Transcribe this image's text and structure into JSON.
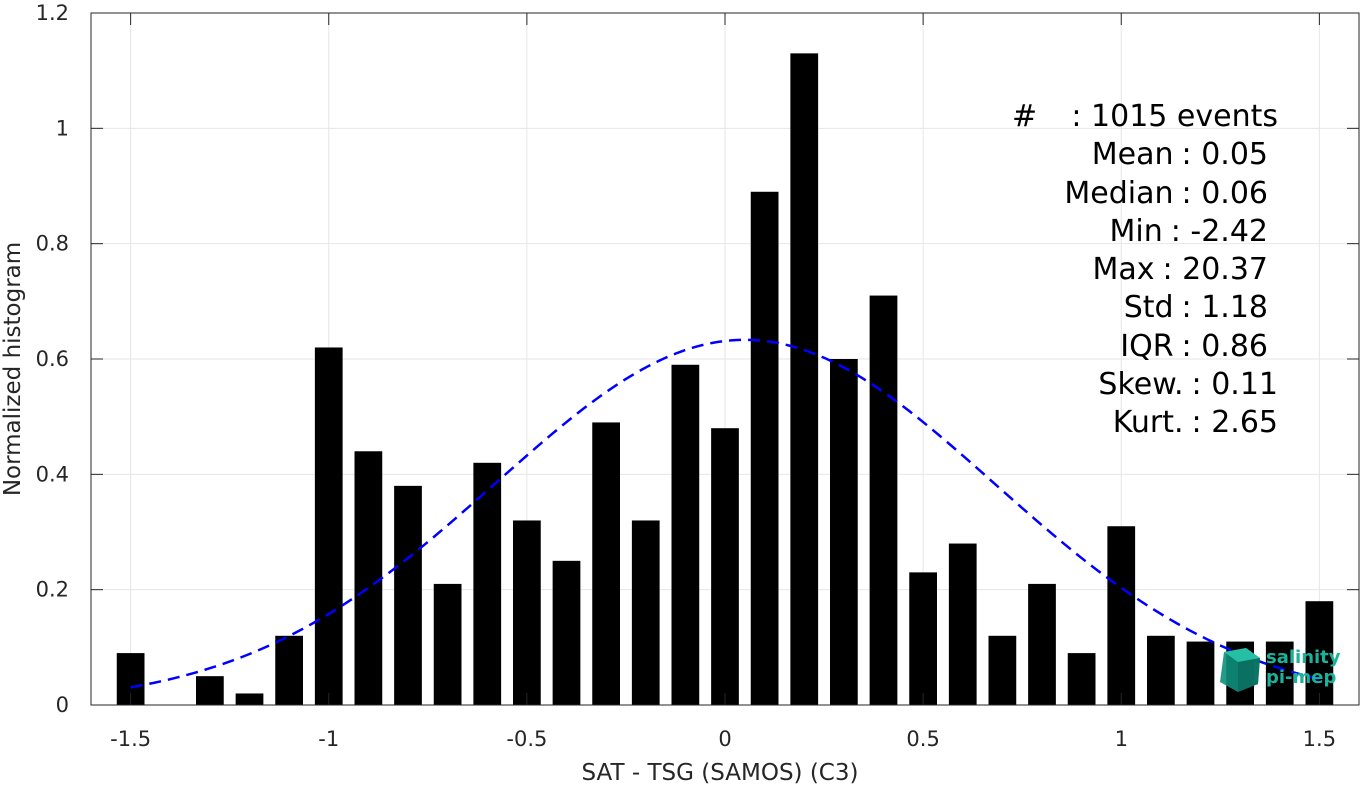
{
  "chart_data": {
    "type": "bar",
    "xlabel": "SAT - TSG (SAMOS) (C3)",
    "ylabel": "Normalized histogram",
    "xlim": [
      -1.6,
      1.6
    ],
    "ylim": [
      0,
      1.2
    ],
    "xticks": [
      "-1.5",
      "-1",
      "-0.5",
      "0",
      "0.5",
      "1",
      "1.5"
    ],
    "xtick_values": [
      -1.5,
      -1,
      -0.5,
      0,
      0.5,
      1,
      1.5
    ],
    "yticks": [
      "0",
      "0.2",
      "0.4",
      "0.6",
      "0.8",
      "1",
      "1.2"
    ],
    "ytick_values": [
      0,
      0.2,
      0.4,
      0.6,
      0.8,
      1.0,
      1.2
    ],
    "grid": true,
    "bar_color": "#000000",
    "bar_width": 0.07,
    "bins": [
      -1.5,
      -1.4,
      -1.3,
      -1.2,
      -1.1,
      -1.0,
      -0.9,
      -0.8,
      -0.7,
      -0.6,
      -0.5,
      -0.4,
      -0.3,
      -0.2,
      -0.1,
      0.0,
      0.1,
      0.2,
      0.3,
      0.4,
      0.5,
      0.6,
      0.7,
      0.8,
      0.9,
      1.0,
      1.1,
      1.2,
      1.3,
      1.4,
      1.5
    ],
    "values": [
      0.09,
      0.0,
      0.05,
      0.02,
      0.12,
      0.62,
      0.44,
      0.38,
      0.21,
      0.42,
      0.32,
      0.25,
      0.49,
      0.32,
      0.59,
      0.48,
      0.89,
      1.13,
      0.6,
      0.71,
      0.23,
      0.28,
      0.12,
      0.21,
      0.09,
      0.31,
      0.12,
      0.11,
      0.11,
      0.11,
      0.18
    ],
    "fit_curve": {
      "style": "dashed",
      "color": "#0000ff",
      "mean": 0.05,
      "std": 0.63,
      "x_range": [
        -1.5,
        1.5
      ]
    }
  },
  "stats": [
    {
      "label": "#",
      "value": ": 1015 events"
    },
    {
      "label": "Mean",
      "value": ": 0.05"
    },
    {
      "label": "Median",
      "value": ": 0.06"
    },
    {
      "label": "Min",
      "value": ": -2.42"
    },
    {
      "label": "Max",
      "value": ": 20.37"
    },
    {
      "label": "Std",
      "value": ": 1.18"
    },
    {
      "label": "IQR",
      "value": ": 0.86"
    },
    {
      "label": "Skew.",
      "value": ": 0.11"
    },
    {
      "label": "Kurt.",
      "value": ": 2.65"
    }
  ],
  "logo": {
    "line1": "salinity",
    "line2": "pi-mep",
    "color": "#19b39b"
  }
}
